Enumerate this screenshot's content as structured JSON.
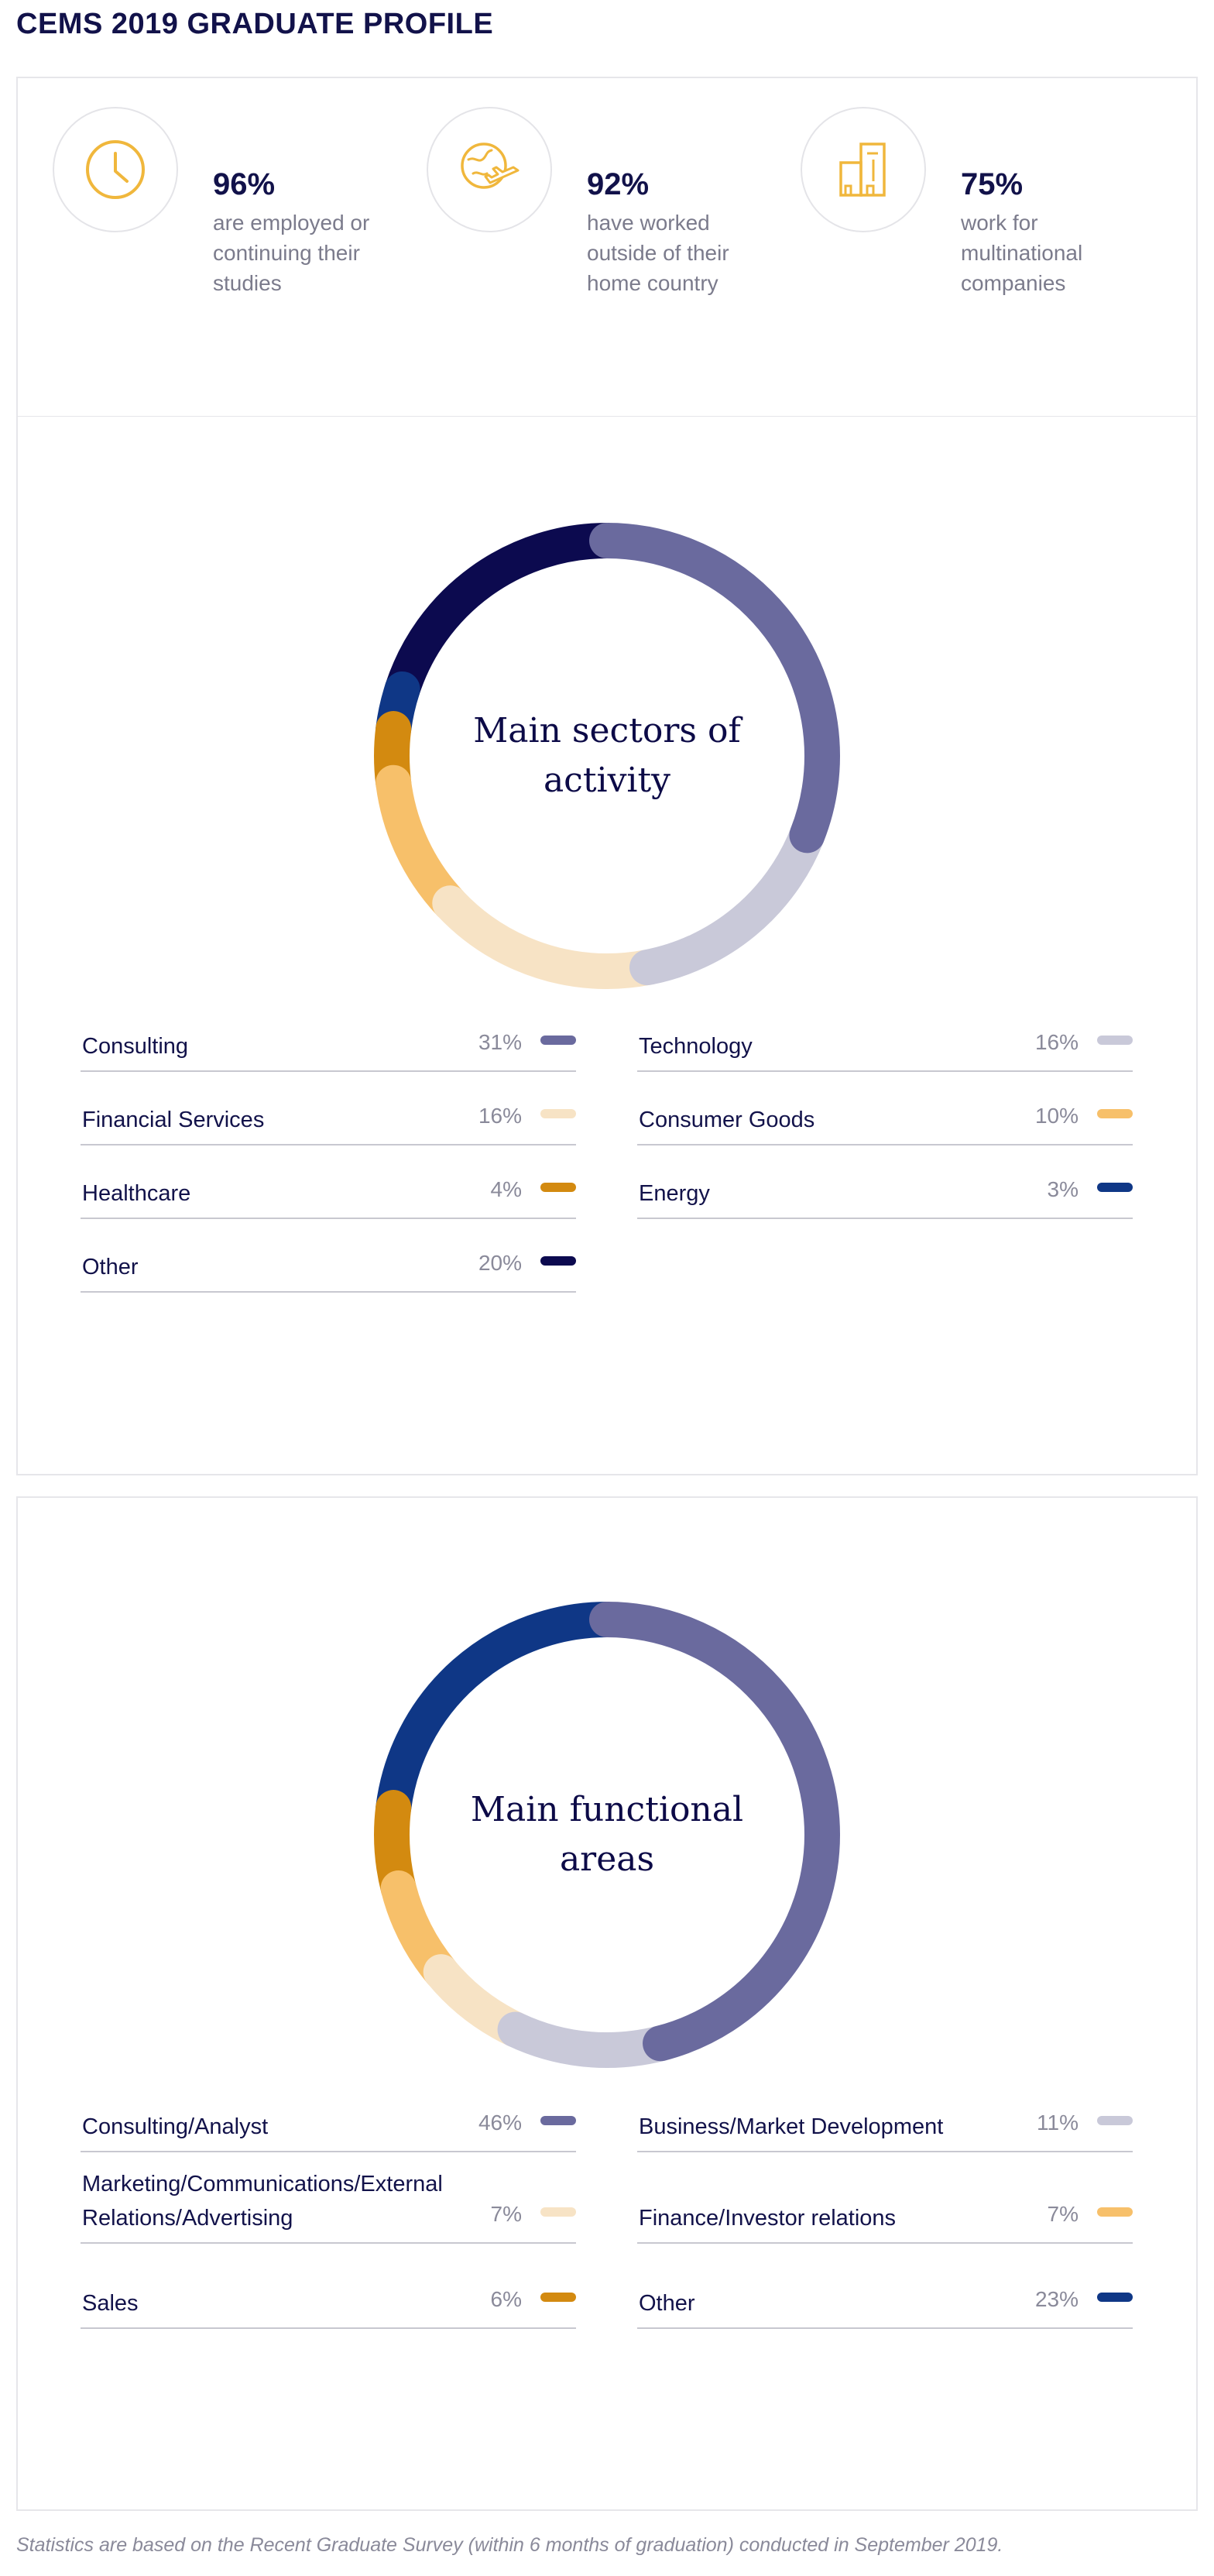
{
  "title": "CEMS 2019 GRADUATE PROFILE",
  "stats": [
    {
      "value": "96%",
      "desc": "are employed or continuing their studies",
      "icon": "clock-icon"
    },
    {
      "value": "92%",
      "desc": "have worked outside of their home country",
      "icon": "globe-plane-icon"
    },
    {
      "value": "75%",
      "desc": "work for multinational companies",
      "icon": "buildings-icon"
    }
  ],
  "accent_color": "#f0b73c",
  "chart_data": [
    {
      "type": "pie",
      "title": "Main sectors of activity",
      "categories": [
        "Consulting",
        "Technology",
        "Financial Services",
        "Consumer Goods",
        "Healthcare",
        "Energy",
        "Other"
      ],
      "values": [
        31,
        16,
        16,
        10,
        4,
        3,
        20
      ],
      "labels": [
        "31%",
        "16%",
        "16%",
        "10%",
        "4%",
        "3%",
        "20%"
      ],
      "colors": [
        "#6a6a9e",
        "#c9c9d9",
        "#f7e3c5",
        "#f7c06a",
        "#d38a10",
        "#0f3786",
        "#0c0a4f"
      ],
      "legend_order": [
        0,
        2,
        4,
        6,
        1,
        3,
        5
      ]
    },
    {
      "type": "pie",
      "title": "Main functional areas",
      "categories": [
        "Consulting/Analyst",
        "Business/Market Development",
        "Marketing/Communications/External Relations/Advertising",
        "Finance/Investor relations",
        "Sales",
        "Other"
      ],
      "values": [
        46,
        11,
        7,
        7,
        6,
        23
      ],
      "labels": [
        "46%",
        "11%",
        "7%",
        "7%",
        "6%",
        "23%"
      ],
      "colors": [
        "#6a6a9e",
        "#c9c9d9",
        "#f7e3c5",
        "#f7c06a",
        "#d38a10",
        "#0f3786"
      ],
      "legend_order": [
        0,
        2,
        4,
        1,
        3,
        5
      ]
    }
  ],
  "footnote": "Statistics are based on the Recent Graduate Survey (within 6 months of graduation) conducted in September 2019."
}
